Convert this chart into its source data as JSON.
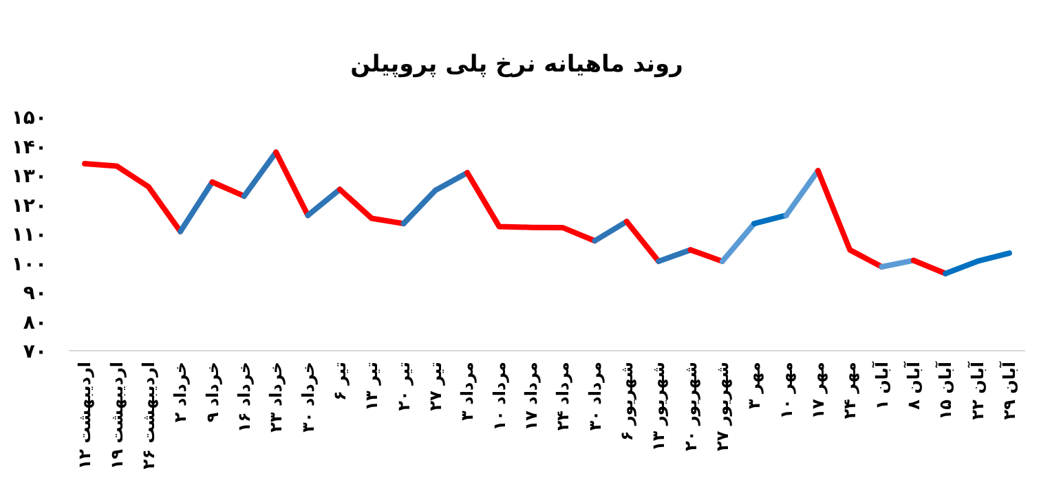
{
  "chart_data": {
    "type": "line",
    "title": "روند ماهیانه نرخ پلی پروپیلن",
    "categories": [
      "۱۲ اردیبهشت",
      "۱۹ اردیبهشت",
      "۲۶ اردیبهشت",
      "۲ خرداد",
      "۹ خرداد",
      "۱۶ خرداد",
      "۲۳ خرداد",
      "۳۰ خرداد",
      "۶ تیر",
      "۱۳ تیر",
      "۲۰ تیر",
      "۲۷ تیر",
      "۳ مرداد",
      "۱۰ مرداد",
      "۱۷ مرداد",
      "۲۴ مرداد",
      "۳۰ مرداد",
      "۶ شهریور",
      "۱۳ شهریور",
      "۲۰ شهریور",
      "۲۷ شهریور",
      "۳ مهر",
      "۱۰ مهر",
      "۱۷ مهر",
      "۲۴ مهر",
      "۱ آبان",
      "۸ آبان",
      "۱۵ آبان",
      "۲۲ آبان",
      "۲۹ آبان"
    ],
    "series": [
      {
        "color": "#ff0000",
        "values": [
          134,
          133.2,
          126.1,
          110.8,
          null,
          null,
          null,
          null,
          null,
          null,
          null,
          null,
          null,
          null,
          null,
          null,
          null,
          null,
          null,
          null,
          null,
          null,
          null,
          null,
          null,
          null,
          null,
          null,
          null,
          null
        ]
      },
      {
        "color": "#2e75b6",
        "values": [
          null,
          null,
          null,
          110.8,
          127.7,
          null,
          null,
          null,
          null,
          null,
          null,
          null,
          null,
          null,
          null,
          null,
          null,
          null,
          null,
          null,
          null,
          null,
          null,
          null,
          null,
          null,
          null,
          null,
          null,
          null
        ]
      },
      {
        "color": "#ff0000",
        "values": [
          null,
          null,
          null,
          null,
          127.7,
          122.9,
          null,
          null,
          null,
          null,
          null,
          null,
          null,
          null,
          null,
          null,
          null,
          null,
          null,
          null,
          null,
          null,
          null,
          null,
          null,
          null,
          null,
          null,
          null,
          null
        ]
      },
      {
        "color": "#2e75b6",
        "values": [
          null,
          null,
          null,
          null,
          null,
          122.9,
          137.9,
          null,
          null,
          null,
          null,
          null,
          null,
          null,
          null,
          null,
          null,
          null,
          null,
          null,
          null,
          null,
          null,
          null,
          null,
          null,
          null,
          null,
          null,
          null
        ]
      },
      {
        "color": "#ff0000",
        "values": [
          null,
          null,
          null,
          null,
          null,
          null,
          137.9,
          116.3,
          null,
          null,
          null,
          null,
          null,
          null,
          null,
          null,
          null,
          null,
          null,
          null,
          null,
          null,
          null,
          null,
          null,
          null,
          null,
          null,
          null,
          null
        ]
      },
      {
        "color": "#2e75b6",
        "values": [
          null,
          null,
          null,
          null,
          null,
          null,
          null,
          116.3,
          125.2,
          null,
          null,
          null,
          null,
          null,
          null,
          null,
          null,
          null,
          null,
          null,
          null,
          null,
          null,
          null,
          null,
          null,
          null,
          null,
          null,
          null
        ]
      },
      {
        "color": "#ff0000",
        "values": [
          null,
          null,
          null,
          null,
          null,
          null,
          null,
          null,
          125.2,
          115.3,
          113.5,
          null,
          null,
          null,
          null,
          null,
          null,
          null,
          null,
          null,
          null,
          null,
          null,
          null,
          null,
          null,
          null,
          null,
          null,
          null
        ]
      },
      {
        "color": "#2e75b6",
        "values": [
          null,
          null,
          null,
          null,
          null,
          null,
          null,
          null,
          null,
          null,
          113.5,
          124.9,
          130.9,
          null,
          null,
          null,
          null,
          null,
          null,
          null,
          null,
          null,
          null,
          null,
          null,
          null,
          null,
          null,
          null,
          null
        ]
      },
      {
        "color": "#ff0000",
        "values": [
          null,
          null,
          null,
          null,
          null,
          null,
          null,
          null,
          null,
          null,
          null,
          null,
          130.9,
          112.5,
          112.2,
          112.1,
          107.6,
          null,
          null,
          null,
          null,
          null,
          null,
          null,
          null,
          null,
          null,
          null,
          null,
          null
        ]
      },
      {
        "color": "#2e75b6",
        "values": [
          null,
          null,
          null,
          null,
          null,
          null,
          null,
          null,
          null,
          null,
          null,
          null,
          null,
          null,
          null,
          null,
          107.6,
          114.2,
          null,
          null,
          null,
          null,
          null,
          null,
          null,
          null,
          null,
          null,
          null,
          null
        ]
      },
      {
        "color": "#ff0000",
        "values": [
          null,
          null,
          null,
          null,
          null,
          null,
          null,
          null,
          null,
          null,
          null,
          null,
          null,
          null,
          null,
          null,
          null,
          114.2,
          100.6,
          null,
          null,
          null,
          null,
          null,
          null,
          null,
          null,
          null,
          null,
          null
        ]
      },
      {
        "color": "#2e75b6",
        "values": [
          null,
          null,
          null,
          null,
          null,
          null,
          null,
          null,
          null,
          null,
          null,
          null,
          null,
          null,
          null,
          null,
          null,
          null,
          100.6,
          104.5,
          null,
          null,
          null,
          null,
          null,
          null,
          null,
          null,
          null,
          null
        ]
      },
      {
        "color": "#ff0000",
        "values": [
          null,
          null,
          null,
          null,
          null,
          null,
          null,
          null,
          null,
          null,
          null,
          null,
          null,
          null,
          null,
          null,
          null,
          null,
          null,
          104.5,
          100.6,
          null,
          null,
          null,
          null,
          null,
          null,
          null,
          null,
          null
        ]
      },
      {
        "color": "#5b9bd5",
        "values": [
          null,
          null,
          null,
          null,
          null,
          null,
          null,
          null,
          null,
          null,
          null,
          null,
          null,
          null,
          null,
          null,
          null,
          null,
          null,
          null,
          100.6,
          113.5,
          null,
          null,
          null,
          null,
          null,
          null,
          null,
          null
        ]
      },
      {
        "color": "#0070c0",
        "values": [
          null,
          null,
          null,
          null,
          null,
          null,
          null,
          null,
          null,
          null,
          null,
          null,
          null,
          null,
          null,
          null,
          null,
          null,
          null,
          null,
          null,
          113.5,
          116.3,
          null,
          null,
          null,
          null,
          null,
          null,
          null
        ]
      },
      {
        "color": "#5b9bd5",
        "values": [
          null,
          null,
          null,
          null,
          null,
          null,
          null,
          null,
          null,
          null,
          null,
          null,
          null,
          null,
          null,
          null,
          null,
          null,
          null,
          null,
          null,
          null,
          116.3,
          131.6,
          null,
          null,
          null,
          null,
          null,
          null
        ]
      },
      {
        "color": "#ff0000",
        "values": [
          null,
          null,
          null,
          null,
          null,
          null,
          null,
          null,
          null,
          null,
          null,
          null,
          null,
          null,
          null,
          null,
          null,
          null,
          null,
          null,
          null,
          null,
          null,
          131.6,
          104.5,
          98.7,
          null,
          null,
          null,
          null
        ]
      },
      {
        "color": "#5b9bd5",
        "values": [
          null,
          null,
          null,
          null,
          null,
          null,
          null,
          null,
          null,
          null,
          null,
          null,
          null,
          null,
          null,
          null,
          null,
          null,
          null,
          null,
          null,
          null,
          null,
          null,
          null,
          98.7,
          100.9,
          null,
          null,
          null
        ]
      },
      {
        "color": "#ff0000",
        "values": [
          null,
          null,
          null,
          null,
          null,
          null,
          null,
          null,
          null,
          null,
          null,
          null,
          null,
          null,
          null,
          null,
          null,
          null,
          null,
          null,
          null,
          null,
          null,
          null,
          null,
          null,
          100.9,
          96.4,
          null,
          null
        ]
      },
      {
        "color": "#0070c0",
        "values": [
          null,
          null,
          null,
          null,
          null,
          null,
          null,
          null,
          null,
          null,
          null,
          null,
          null,
          null,
          null,
          null,
          null,
          null,
          null,
          null,
          null,
          null,
          null,
          null,
          null,
          null,
          null,
          96.4,
          100.6,
          103.4
        ]
      }
    ],
    "ylim": [
      70,
      150
    ],
    "yticks": [
      {
        "value": 70,
        "label": "۷۰"
      },
      {
        "value": 80,
        "label": "۸۰"
      },
      {
        "value": 90,
        "label": "۹۰"
      },
      {
        "value": 100,
        "label": "۱۰۰"
      },
      {
        "value": 110,
        "label": "۱۱۰"
      },
      {
        "value": 120,
        "label": "۱۲۰"
      },
      {
        "value": 130,
        "label": "۱۳۰"
      },
      {
        "value": 140,
        "label": "۱۴۰"
      },
      {
        "value": 150,
        "label": "۱۵۰"
      }
    ]
  }
}
